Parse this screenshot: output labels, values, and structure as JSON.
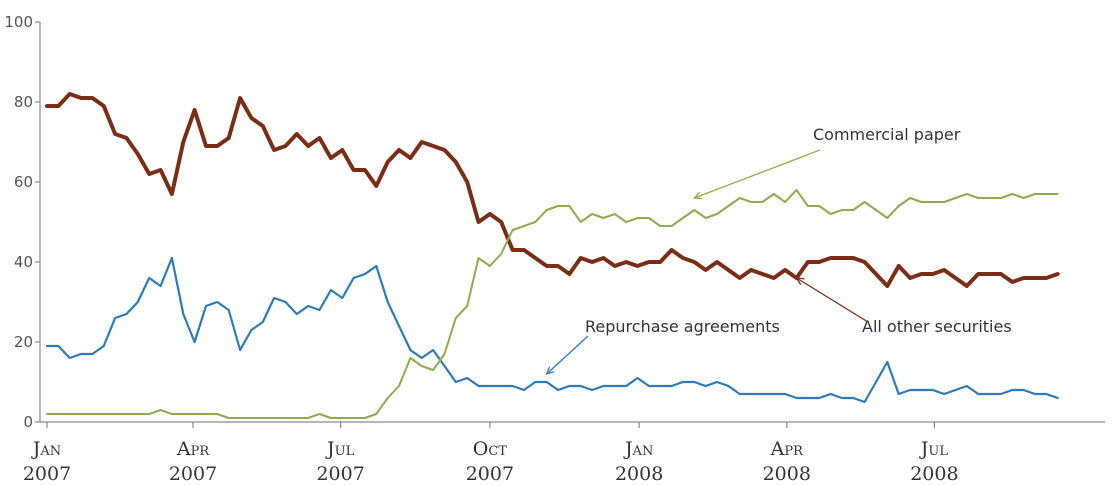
{
  "chart_data": {
    "type": "line",
    "ylim": [
      0,
      100
    ],
    "yticks": [
      0,
      20,
      40,
      60,
      80,
      100
    ],
    "xlim": [
      "2007-01-01",
      "2008-10-08"
    ],
    "xticks": [
      {
        "date": "2007-01-01",
        "line1": "Jan",
        "line2": "2007"
      },
      {
        "date": "2007-04-01",
        "line1": "Apr",
        "line2": "2007"
      },
      {
        "date": "2007-07-01",
        "line1": "Jul",
        "line2": "2007"
      },
      {
        "date": "2007-10-01",
        "line1": "Oct",
        "line2": "2007"
      },
      {
        "date": "2008-01-01",
        "line1": "Jan",
        "line2": "2008"
      },
      {
        "date": "2008-04-01",
        "line1": "Apr",
        "line2": "2008"
      },
      {
        "date": "2008-07-01",
        "line1": "Jul",
        "line2": "2008"
      }
    ],
    "grid": false,
    "series": [
      {
        "name": "All other securities",
        "color": "#7a2e16",
        "points": [
          [
            "2007-01-01",
            79
          ],
          [
            "2007-01-08",
            79
          ],
          [
            "2007-01-15",
            82
          ],
          [
            "2007-01-22",
            81
          ],
          [
            "2007-01-29",
            81
          ],
          [
            "2007-02-05",
            79
          ],
          [
            "2007-02-12",
            72
          ],
          [
            "2007-02-19",
            71
          ],
          [
            "2007-02-26",
            67
          ],
          [
            "2007-03-05",
            62
          ],
          [
            "2007-03-12",
            63
          ],
          [
            "2007-03-19",
            57
          ],
          [
            "2007-03-26",
            70
          ],
          [
            "2007-04-02",
            78
          ],
          [
            "2007-04-09",
            69
          ],
          [
            "2007-04-16",
            69
          ],
          [
            "2007-04-23",
            71
          ],
          [
            "2007-04-30",
            81
          ],
          [
            "2007-05-07",
            76
          ],
          [
            "2007-05-14",
            74
          ],
          [
            "2007-05-21",
            68
          ],
          [
            "2007-05-28",
            69
          ],
          [
            "2007-06-04",
            72
          ],
          [
            "2007-06-11",
            69
          ],
          [
            "2007-06-18",
            71
          ],
          [
            "2007-06-25",
            66
          ],
          [
            "2007-07-02",
            68
          ],
          [
            "2007-07-09",
            63
          ],
          [
            "2007-07-16",
            63
          ],
          [
            "2007-07-23",
            59
          ],
          [
            "2007-07-30",
            65
          ],
          [
            "2007-08-06",
            68
          ],
          [
            "2007-08-13",
            66
          ],
          [
            "2007-08-20",
            70
          ],
          [
            "2007-08-27",
            69
          ],
          [
            "2007-09-03",
            68
          ],
          [
            "2007-09-10",
            65
          ],
          [
            "2007-09-17",
            60
          ],
          [
            "2007-09-24",
            50
          ],
          [
            "2007-10-01",
            52
          ],
          [
            "2007-10-08",
            50
          ],
          [
            "2007-10-15",
            43
          ],
          [
            "2007-10-22",
            43
          ],
          [
            "2007-10-29",
            41
          ],
          [
            "2007-11-05",
            39
          ],
          [
            "2007-11-12",
            39
          ],
          [
            "2007-11-19",
            37
          ],
          [
            "2007-11-26",
            41
          ],
          [
            "2007-12-03",
            40
          ],
          [
            "2007-12-10",
            41
          ],
          [
            "2007-12-17",
            39
          ],
          [
            "2007-12-24",
            40
          ],
          [
            "2007-12-31",
            39
          ],
          [
            "2008-01-07",
            40
          ],
          [
            "2008-01-14",
            40
          ],
          [
            "2008-01-21",
            43
          ],
          [
            "2008-01-28",
            41
          ],
          [
            "2008-02-04",
            40
          ],
          [
            "2008-02-11",
            38
          ],
          [
            "2008-02-18",
            40
          ],
          [
            "2008-02-25",
            38
          ],
          [
            "2008-03-03",
            36
          ],
          [
            "2008-03-10",
            38
          ],
          [
            "2008-03-17",
            37
          ],
          [
            "2008-03-24",
            36
          ],
          [
            "2008-03-31",
            38
          ],
          [
            "2008-04-07",
            36
          ],
          [
            "2008-04-14",
            40
          ],
          [
            "2008-04-21",
            40
          ],
          [
            "2008-04-28",
            41
          ],
          [
            "2008-05-05",
            41
          ],
          [
            "2008-05-12",
            41
          ],
          [
            "2008-05-19",
            40
          ],
          [
            "2008-05-26",
            37
          ],
          [
            "2008-06-02",
            34
          ],
          [
            "2008-06-09",
            39
          ],
          [
            "2008-06-16",
            36
          ],
          [
            "2008-06-23",
            37
          ],
          [
            "2008-06-30",
            37
          ],
          [
            "2008-07-07",
            38
          ],
          [
            "2008-07-14",
            36
          ],
          [
            "2008-07-21",
            34
          ],
          [
            "2008-07-28",
            37
          ],
          [
            "2008-08-04",
            37
          ],
          [
            "2008-08-11",
            37
          ],
          [
            "2008-08-18",
            35
          ],
          [
            "2008-08-25",
            36
          ],
          [
            "2008-09-01",
            36
          ],
          [
            "2008-09-08",
            36
          ],
          [
            "2008-09-15",
            37
          ]
        ]
      },
      {
        "name": "Repurchase agreements",
        "color": "#2f7bb8",
        "points": [
          [
            "2007-01-01",
            19
          ],
          [
            "2007-01-08",
            19
          ],
          [
            "2007-01-15",
            16
          ],
          [
            "2007-01-22",
            17
          ],
          [
            "2007-01-29",
            17
          ],
          [
            "2007-02-05",
            19
          ],
          [
            "2007-02-12",
            26
          ],
          [
            "2007-02-19",
            27
          ],
          [
            "2007-02-26",
            30
          ],
          [
            "2007-03-05",
            36
          ],
          [
            "2007-03-12",
            34
          ],
          [
            "2007-03-19",
            41
          ],
          [
            "2007-03-26",
            27
          ],
          [
            "2007-04-02",
            20
          ],
          [
            "2007-04-09",
            29
          ],
          [
            "2007-04-16",
            30
          ],
          [
            "2007-04-23",
            28
          ],
          [
            "2007-04-30",
            18
          ],
          [
            "2007-05-07",
            23
          ],
          [
            "2007-05-14",
            25
          ],
          [
            "2007-05-21",
            31
          ],
          [
            "2007-05-28",
            30
          ],
          [
            "2007-06-04",
            27
          ],
          [
            "2007-06-11",
            29
          ],
          [
            "2007-06-18",
            28
          ],
          [
            "2007-06-25",
            33
          ],
          [
            "2007-07-02",
            31
          ],
          [
            "2007-07-09",
            36
          ],
          [
            "2007-07-16",
            37
          ],
          [
            "2007-07-23",
            39
          ],
          [
            "2007-07-30",
            30
          ],
          [
            "2007-08-06",
            24
          ],
          [
            "2007-08-13",
            18
          ],
          [
            "2007-08-20",
            16
          ],
          [
            "2007-08-27",
            18
          ],
          [
            "2007-09-03",
            14
          ],
          [
            "2007-09-10",
            10
          ],
          [
            "2007-09-17",
            11
          ],
          [
            "2007-09-24",
            9
          ],
          [
            "2007-10-01",
            9
          ],
          [
            "2007-10-08",
            9
          ],
          [
            "2007-10-15",
            9
          ],
          [
            "2007-10-22",
            8
          ],
          [
            "2007-10-29",
            10
          ],
          [
            "2007-11-05",
            10
          ],
          [
            "2007-11-12",
            8
          ],
          [
            "2007-11-19",
            9
          ],
          [
            "2007-11-26",
            9
          ],
          [
            "2007-12-03",
            8
          ],
          [
            "2007-12-10",
            9
          ],
          [
            "2007-12-17",
            9
          ],
          [
            "2007-12-24",
            9
          ],
          [
            "2007-12-31",
            11
          ],
          [
            "2008-01-07",
            9
          ],
          [
            "2008-01-14",
            9
          ],
          [
            "2008-01-21",
            9
          ],
          [
            "2008-01-28",
            10
          ],
          [
            "2008-02-04",
            10
          ],
          [
            "2008-02-11",
            9
          ],
          [
            "2008-02-18",
            10
          ],
          [
            "2008-02-25",
            9
          ],
          [
            "2008-03-03",
            7
          ],
          [
            "2008-03-10",
            7
          ],
          [
            "2008-03-17",
            7
          ],
          [
            "2008-03-24",
            7
          ],
          [
            "2008-03-31",
            7
          ],
          [
            "2008-04-07",
            6
          ],
          [
            "2008-04-14",
            6
          ],
          [
            "2008-04-21",
            6
          ],
          [
            "2008-04-28",
            7
          ],
          [
            "2008-05-05",
            6
          ],
          [
            "2008-05-12",
            6
          ],
          [
            "2008-05-19",
            5
          ],
          [
            "2008-05-26",
            10
          ],
          [
            "2008-06-02",
            15
          ],
          [
            "2008-06-09",
            7
          ],
          [
            "2008-06-16",
            8
          ],
          [
            "2008-06-23",
            8
          ],
          [
            "2008-06-30",
            8
          ],
          [
            "2008-07-07",
            7
          ],
          [
            "2008-07-14",
            8
          ],
          [
            "2008-07-21",
            9
          ],
          [
            "2008-07-28",
            7
          ],
          [
            "2008-08-04",
            7
          ],
          [
            "2008-08-11",
            7
          ],
          [
            "2008-08-18",
            8
          ],
          [
            "2008-08-25",
            8
          ],
          [
            "2008-09-01",
            7
          ],
          [
            "2008-09-08",
            7
          ],
          [
            "2008-09-15",
            6
          ]
        ]
      },
      {
        "name": "Commercial paper",
        "color": "#8fad4f",
        "points": [
          [
            "2007-01-01",
            2
          ],
          [
            "2007-01-15",
            2
          ],
          [
            "2007-02-05",
            2
          ],
          [
            "2007-02-26",
            2
          ],
          [
            "2007-03-05",
            2
          ],
          [
            "2007-03-12",
            3
          ],
          [
            "2007-03-19",
            2
          ],
          [
            "2007-04-02",
            2
          ],
          [
            "2007-04-16",
            2
          ],
          [
            "2007-04-23",
            1
          ],
          [
            "2007-05-07",
            1
          ],
          [
            "2007-06-04",
            1
          ],
          [
            "2007-06-11",
            1
          ],
          [
            "2007-06-18",
            2
          ],
          [
            "2007-06-25",
            1
          ],
          [
            "2007-07-09",
            1
          ],
          [
            "2007-07-16",
            1
          ],
          [
            "2007-07-23",
            2
          ],
          [
            "2007-07-30",
            6
          ],
          [
            "2007-08-06",
            9
          ],
          [
            "2007-08-13",
            16
          ],
          [
            "2007-08-20",
            14
          ],
          [
            "2007-08-27",
            13
          ],
          [
            "2007-09-03",
            17
          ],
          [
            "2007-09-10",
            26
          ],
          [
            "2007-09-17",
            29
          ],
          [
            "2007-09-24",
            41
          ],
          [
            "2007-10-01",
            39
          ],
          [
            "2007-10-08",
            42
          ],
          [
            "2007-10-15",
            48
          ],
          [
            "2007-10-22",
            49
          ],
          [
            "2007-10-29",
            50
          ],
          [
            "2007-11-05",
            53
          ],
          [
            "2007-11-12",
            54
          ],
          [
            "2007-11-19",
            54
          ],
          [
            "2007-11-26",
            50
          ],
          [
            "2007-12-03",
            52
          ],
          [
            "2007-12-10",
            51
          ],
          [
            "2007-12-17",
            52
          ],
          [
            "2007-12-24",
            50
          ],
          [
            "2007-12-31",
            51
          ],
          [
            "2008-01-07",
            51
          ],
          [
            "2008-01-14",
            49
          ],
          [
            "2008-01-21",
            49
          ],
          [
            "2008-01-28",
            51
          ],
          [
            "2008-02-04",
            53
          ],
          [
            "2008-02-11",
            51
          ],
          [
            "2008-02-18",
            52
          ],
          [
            "2008-02-25",
            54
          ],
          [
            "2008-03-03",
            56
          ],
          [
            "2008-03-10",
            55
          ],
          [
            "2008-03-17",
            55
          ],
          [
            "2008-03-24",
            57
          ],
          [
            "2008-03-31",
            55
          ],
          [
            "2008-04-07",
            58
          ],
          [
            "2008-04-14",
            54
          ],
          [
            "2008-04-21",
            54
          ],
          [
            "2008-04-28",
            52
          ],
          [
            "2008-05-05",
            53
          ],
          [
            "2008-05-12",
            53
          ],
          [
            "2008-05-19",
            55
          ],
          [
            "2008-05-26",
            53
          ],
          [
            "2008-06-02",
            51
          ],
          [
            "2008-06-09",
            54
          ],
          [
            "2008-06-16",
            56
          ],
          [
            "2008-06-23",
            55
          ],
          [
            "2008-06-30",
            55
          ],
          [
            "2008-07-07",
            55
          ],
          [
            "2008-07-14",
            56
          ],
          [
            "2008-07-21",
            57
          ],
          [
            "2008-07-28",
            56
          ],
          [
            "2008-08-04",
            56
          ],
          [
            "2008-08-11",
            56
          ],
          [
            "2008-08-18",
            57
          ],
          [
            "2008-08-25",
            56
          ],
          [
            "2008-09-01",
            57
          ],
          [
            "2008-09-08",
            57
          ],
          [
            "2008-09-15",
            57
          ]
        ]
      }
    ],
    "annotations": [
      {
        "text": "Commercial paper",
        "series": "Commercial paper",
        "color": "#8fad4f",
        "target_date": "2008-02-04",
        "target_value": 56
      },
      {
        "text": "Repurchase agreements",
        "series": "Repurchase agreements",
        "color": "#2f7bb8",
        "target_date": "2007-11-05",
        "target_value": 12
      },
      {
        "text": "All other securities",
        "series": "All other securities",
        "color": "#7a2e16",
        "target_date": "2008-04-07",
        "target_value": 36
      }
    ]
  }
}
